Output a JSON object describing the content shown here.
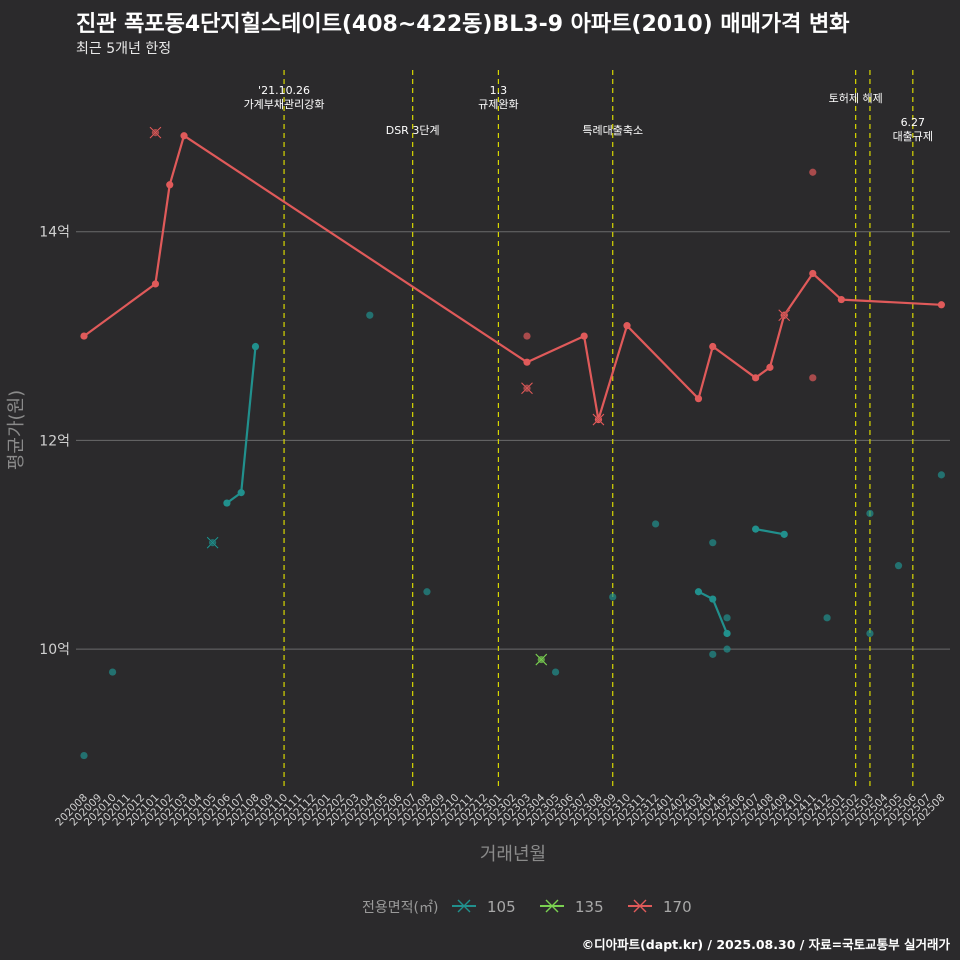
{
  "title": "진관 폭포동4단지힐스테이트(408~422동)BL3-9 아파트(2010) 매매가격 변화",
  "subtitle": "최근 5개년 한정",
  "caption": "©디아파트(dapt.kr) / 2025.08.30 / 자료=국토교통부 실거래가",
  "chart_data": {
    "type": "line",
    "xlabel": "거래년월",
    "ylabel": "평균가(원)",
    "x_categories": [
      "202008",
      "202009",
      "202010",
      "202011",
      "202012",
      "202101",
      "202102",
      "202103",
      "202104",
      "202105",
      "202106",
      "202107",
      "202108",
      "202109",
      "202110",
      "202111",
      "202112",
      "202201",
      "202202",
      "202203",
      "202204",
      "202205",
      "202206",
      "202207",
      "202208",
      "202209",
      "202210",
      "202211",
      "202212",
      "202301",
      "202302",
      "202303",
      "202304",
      "202305",
      "202306",
      "202307",
      "202308",
      "202309",
      "202310",
      "202311",
      "202312",
      "202401",
      "202402",
      "202403",
      "202404",
      "202405",
      "202406",
      "202407",
      "202408",
      "202409",
      "202410",
      "202411",
      "202412",
      "202501",
      "202502",
      "202503",
      "202504",
      "202505",
      "202506",
      "202507",
      "202508"
    ],
    "y_ticks": [
      {
        "value": 10,
        "label": "10억"
      },
      {
        "value": 12,
        "label": "12억"
      },
      {
        "value": 14,
        "label": "14억"
      }
    ],
    "ylim": [
      8.65,
      15.55
    ],
    "grid": true,
    "legend": {
      "title": "전용면적(㎡)",
      "position": "bottom"
    },
    "series": [
      {
        "name": "105",
        "color": "#21908d",
        "lines": [
          [
            [
              "202106",
              11.4
            ],
            [
              "202107",
              11.5
            ],
            [
              "202108",
              12.9
            ]
          ],
          [
            [
              "202403",
              10.55
            ],
            [
              "202404",
              10.48
            ],
            [
              "202405",
              10.15
            ]
          ],
          [
            [
              "202407",
              11.15
            ],
            [
              "202409",
              11.1
            ]
          ]
        ],
        "points": [
          [
            "202008",
            8.98
          ],
          [
            "202010",
            9.78
          ],
          [
            "202204",
            13.2
          ],
          [
            "202208",
            10.55
          ],
          [
            "202305",
            9.78
          ],
          [
            "202309",
            10.5
          ],
          [
            "202312",
            11.2
          ],
          [
            "202404",
            11.02
          ],
          [
            "202404",
            9.95
          ],
          [
            "202405",
            10.3
          ],
          [
            "202405",
            10.0
          ],
          [
            "202412",
            10.3
          ],
          [
            "202503",
            11.3
          ],
          [
            "202503",
            10.15
          ],
          [
            "202505",
            10.8
          ],
          [
            "202508",
            11.67
          ]
        ],
        "crosses": [
          [
            "202105",
            11.02
          ]
        ]
      },
      {
        "name": "135",
        "color": "#7ad151",
        "lines": [],
        "points": [],
        "crosses": [
          [
            "202304",
            9.9
          ]
        ]
      },
      {
        "name": "170",
        "color": "#e05a5a",
        "lines": [
          [
            [
              "202008",
              13.0
            ],
            [
              "202101",
              13.5
            ],
            [
              "202102",
              14.45
            ],
            [
              "202103",
              14.92
            ],
            [
              "202303",
              12.75
            ],
            [
              "202307",
              13.0
            ],
            [
              "202308",
              12.2
            ],
            [
              "202310",
              13.1
            ],
            [
              "202403",
              12.4
            ],
            [
              "202404",
              12.9
            ],
            [
              "202407",
              12.6
            ],
            [
              "202408",
              12.7
            ],
            [
              "202409",
              13.2
            ],
            [
              "202411",
              13.6
            ],
            [
              "202501",
              13.35
            ],
            [
              "202508",
              13.3
            ]
          ]
        ],
        "points": [
          [
            "202303",
            13.0
          ],
          [
            "202411",
            14.57
          ],
          [
            "202411",
            12.6
          ]
        ],
        "crosses": [
          [
            "202101",
            14.95
          ],
          [
            "202303",
            12.5
          ],
          [
            "202308",
            12.2
          ],
          [
            "202409",
            13.2
          ]
        ]
      }
    ],
    "events": [
      {
        "month": "202110",
        "label": "'21.10.26\n가계부채관리강화",
        "row": 0
      },
      {
        "month": "202207",
        "label": "DSR 3단계",
        "row": 1
      },
      {
        "month": "202301",
        "label": "1.3\n규제완화",
        "row": 0
      },
      {
        "month": "202309",
        "label": "특례대출축소",
        "row": 1
      },
      {
        "month": "202502",
        "label": "토허제 해제",
        "row": 0
      },
      {
        "month": "202503",
        "label": "",
        "row": 0
      },
      {
        "month": "202506",
        "label": "6.27\n대출규제",
        "row": 1
      }
    ]
  }
}
